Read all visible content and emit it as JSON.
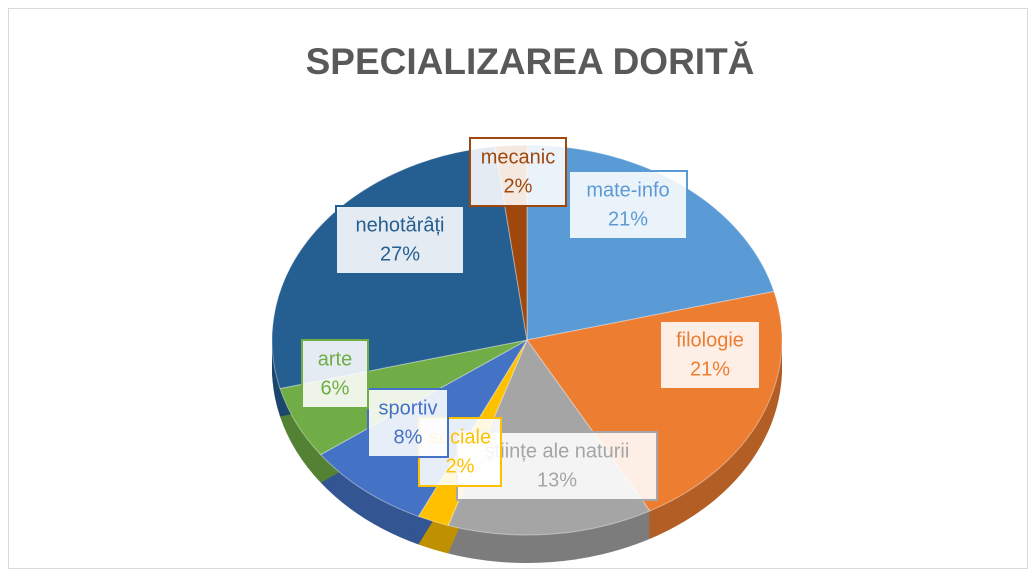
{
  "chart_data": {
    "type": "pie",
    "title": "SPECIALIZAREA DORITĂ",
    "categories": [
      "mate-info",
      "filologie",
      "științe ale naturii",
      "sociale",
      "sportiv",
      "arte",
      "nehotărâți",
      "mecanic"
    ],
    "values": [
      21,
      21,
      13,
      2,
      8,
      6,
      27,
      2
    ],
    "value_labels": [
      "21%",
      "21%",
      "13%",
      "2%",
      "8%",
      "6%",
      "27%",
      "2%"
    ],
    "colors": [
      "#5b9bd5",
      "#ed7d31",
      "#a5a5a5",
      "#ffc000",
      "#4472c4",
      "#70ad47",
      "#255e91",
      "#9e480e"
    ]
  }
}
